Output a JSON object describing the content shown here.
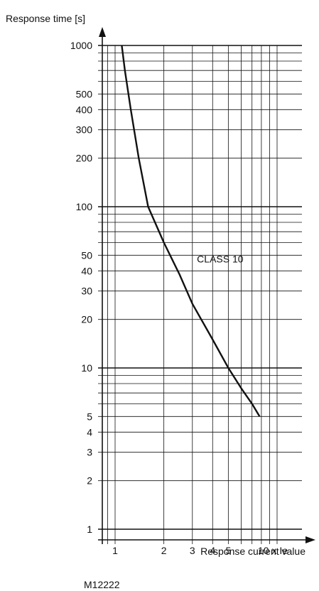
{
  "chart_data": {
    "type": "line",
    "ylabel": "Response time [s]",
    "xlabel": "Response current value",
    "x_scale": "log",
    "y_scale": "log",
    "xlim": [
      0.8,
      12
    ],
    "ylim": [
      0.8,
      1000
    ],
    "x_tick_labels": [
      {
        "value": 1,
        "label": "1"
      },
      {
        "value": 2,
        "label": "2"
      },
      {
        "value": 3,
        "label": "3"
      },
      {
        "value": 4,
        "label": "4"
      },
      {
        "value": 5,
        "label": "5"
      },
      {
        "value": 10,
        "label": "10 x Ie"
      }
    ],
    "x_minor_lines": [
      0.9,
      1,
      2,
      3,
      4,
      5,
      6,
      7,
      8,
      9,
      10
    ],
    "y_tick_labels": [
      {
        "value": 1,
        "label": "1"
      },
      {
        "value": 2,
        "label": "2"
      },
      {
        "value": 3,
        "label": "3"
      },
      {
        "value": 4,
        "label": "4"
      },
      {
        "value": 5,
        "label": "5"
      },
      {
        "value": 10,
        "label": "10"
      },
      {
        "value": 20,
        "label": "20"
      },
      {
        "value": 30,
        "label": "30"
      },
      {
        "value": 40,
        "label": "40"
      },
      {
        "value": 50,
        "label": "50"
      },
      {
        "value": 100,
        "label": "100"
      },
      {
        "value": 200,
        "label": "200"
      },
      {
        "value": 300,
        "label": "300"
      },
      {
        "value": 400,
        "label": "400"
      },
      {
        "value": 500,
        "label": "500"
      },
      {
        "value": 1000,
        "label": "1000"
      }
    ],
    "y_lines": [
      1,
      2,
      3,
      4,
      5,
      6,
      7,
      8,
      9,
      10,
      20,
      30,
      40,
      50,
      60,
      70,
      80,
      90,
      100,
      200,
      300,
      400,
      500,
      600,
      700,
      800,
      900,
      1000
    ],
    "y_major_lines": [
      1,
      10,
      100,
      1000
    ],
    "grid": true,
    "series": [
      {
        "name": "CLASS 10",
        "x": [
          1.1,
          1.15,
          1.25,
          1.4,
          1.6,
          2.0,
          2.5,
          3.0,
          4.0,
          5.0,
          6.0,
          7.0,
          7.8
        ],
        "y": [
          1000,
          700,
          400,
          200,
          100,
          60,
          38,
          25,
          15,
          10,
          7.5,
          6,
          5
        ]
      }
    ],
    "annotations": [
      {
        "text": "CLASS 10",
        "x": 3.2,
        "y": 45
      }
    ]
  },
  "figure_code": "M12222",
  "colors": {
    "line": "#111111",
    "grid": "#111111",
    "background": "#ffffff"
  }
}
